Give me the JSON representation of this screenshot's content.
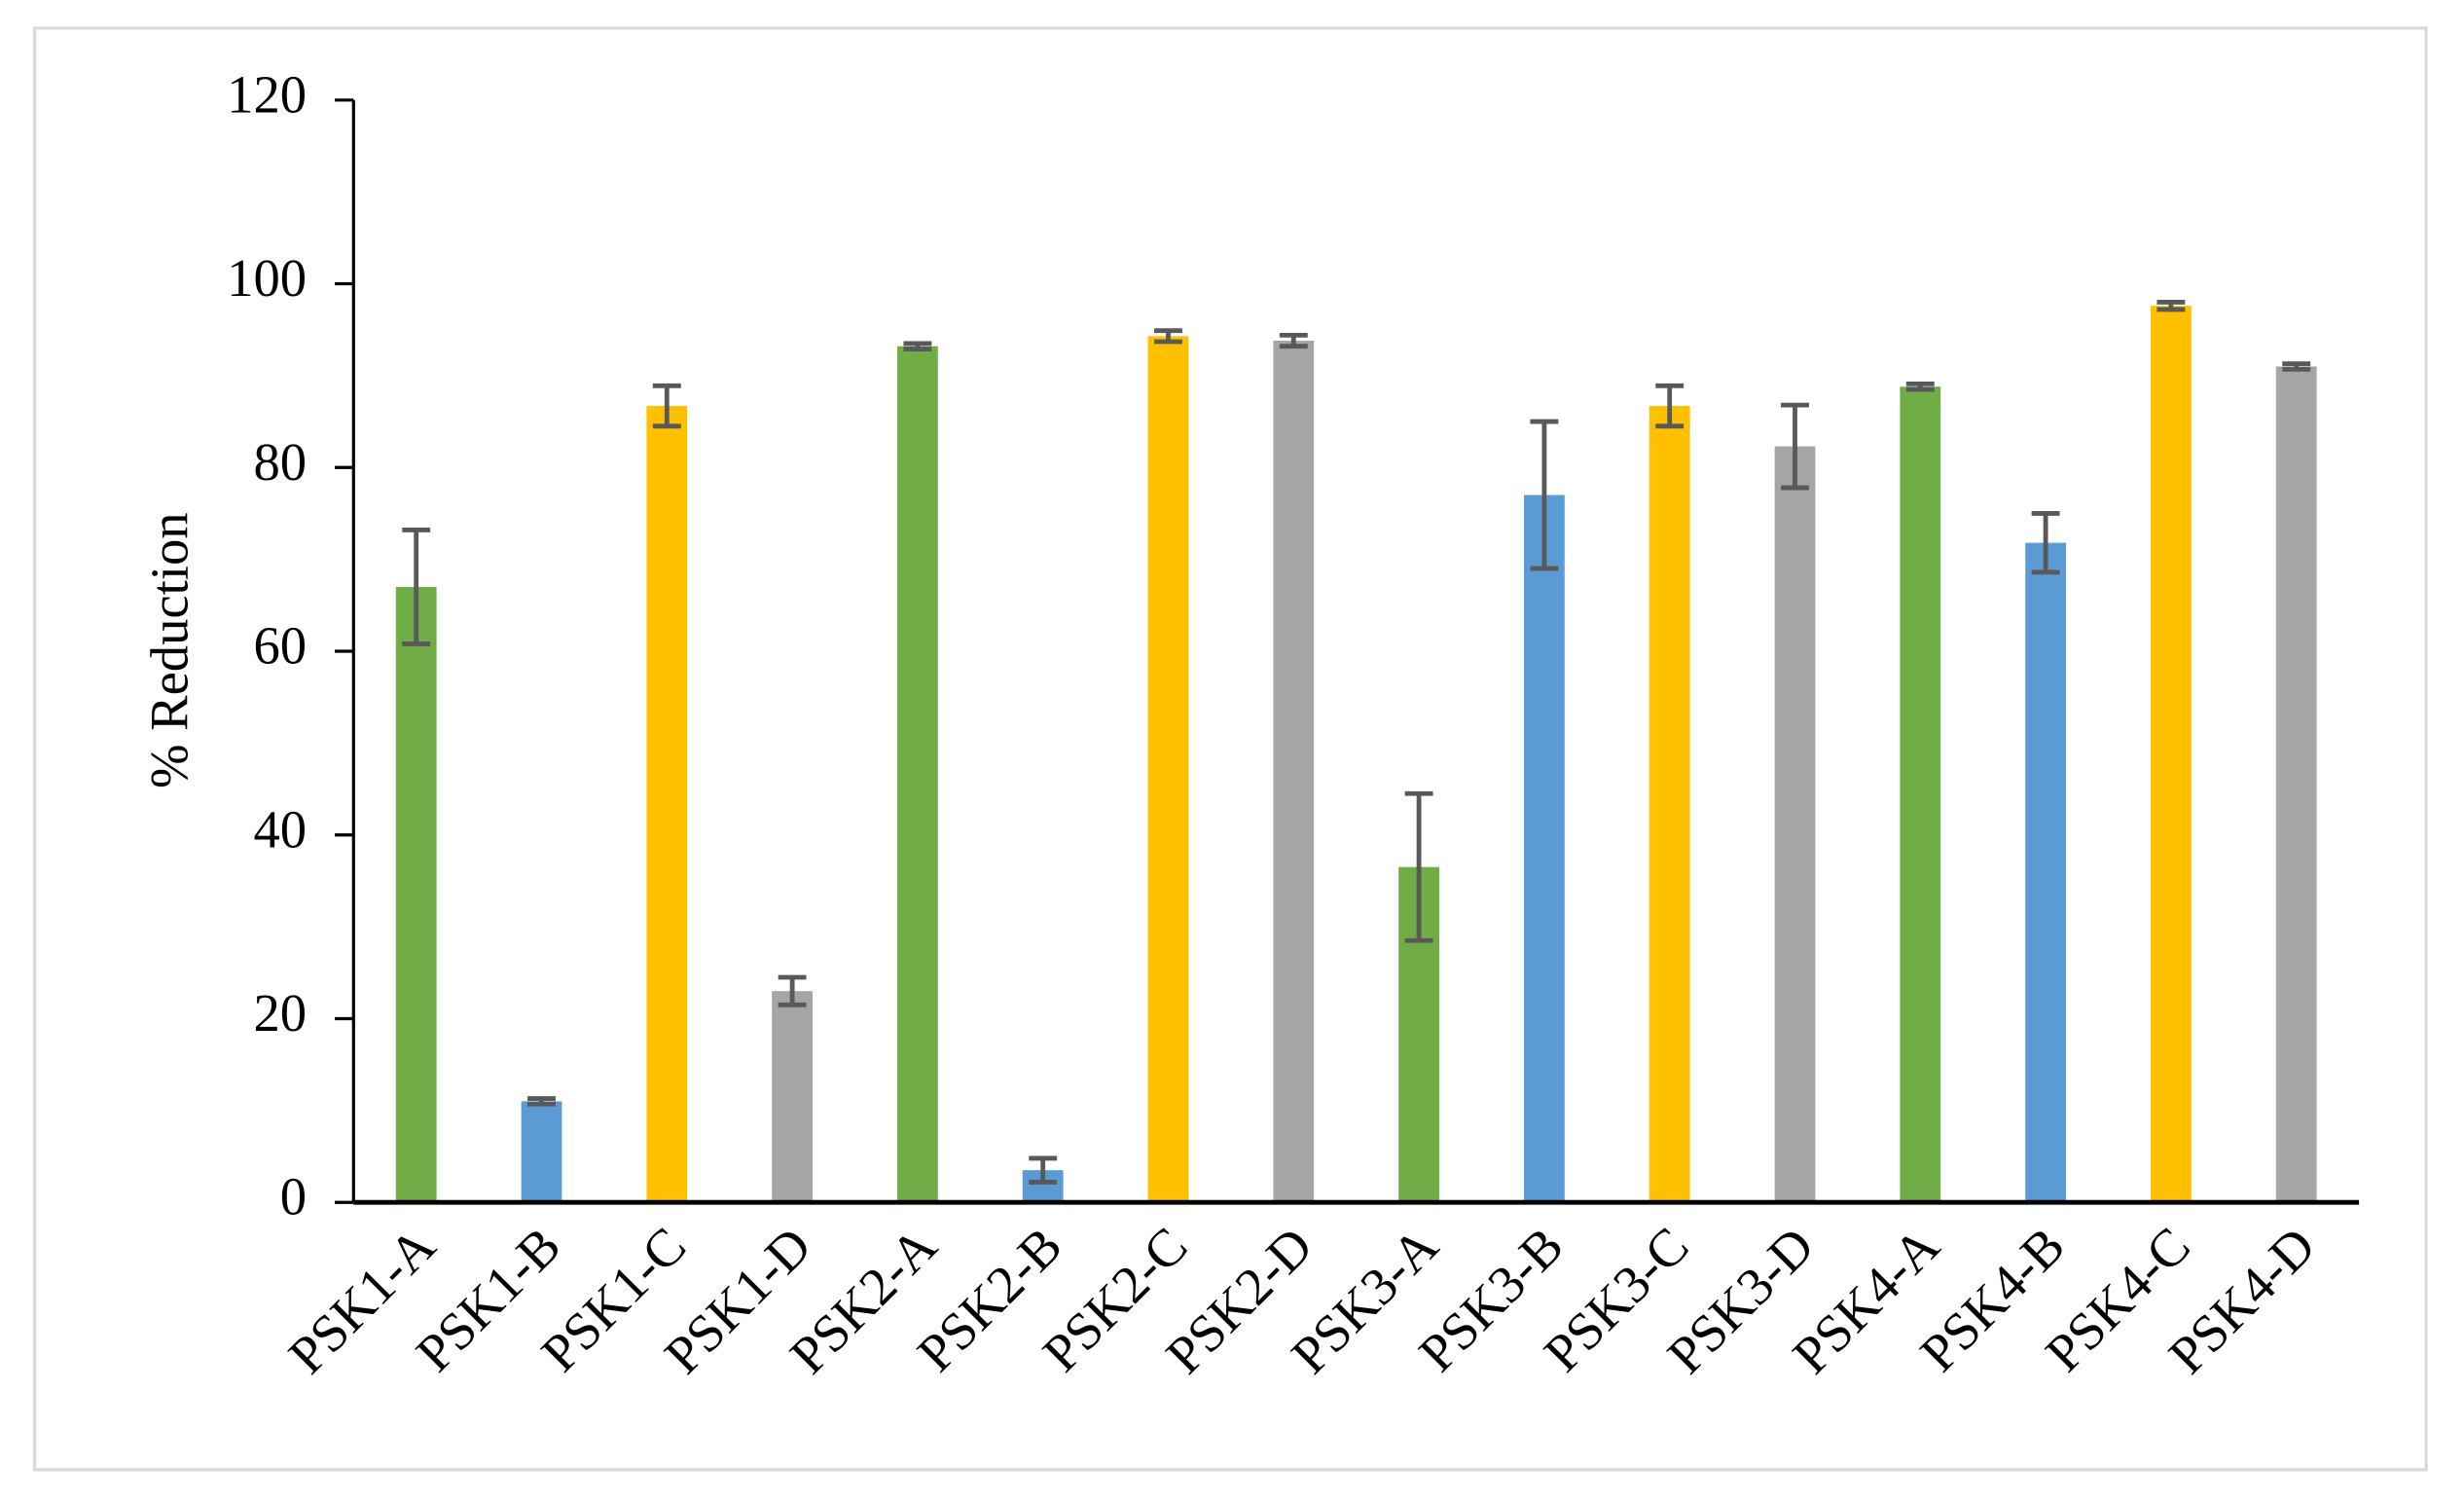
{
  "chart_data": {
    "type": "bar",
    "y_label": "% Reduction",
    "categories": [
      "PSK1-A",
      "PSK1-B",
      "PSK1-C",
      "PSK1-D",
      "PSK2-A",
      "PSK2-B",
      "PSK2-C",
      "PSK2-D",
      "PSK3-A",
      "PSK3-B",
      "PSK3-C",
      "PSK3-D",
      "PSK4-A",
      "PSK4-B",
      "PSK4-C",
      "PSK4-D"
    ],
    "values": [
      67,
      11,
      86.7,
      23,
      93.2,
      3.5,
      94.3,
      93.8,
      36.5,
      77,
      86.7,
      82.3,
      88.8,
      71.8,
      97.6,
      91
    ],
    "errors": [
      6.2,
      0.3,
      2.2,
      1.5,
      0.3,
      1.3,
      0.6,
      0.6,
      8,
      8,
      2.2,
      4.5,
      0.3,
      3.2,
      0.4,
      0.3
    ],
    "colors": [
      "#70ad47",
      "#5b9bd5",
      "#ffc000",
      "#a5a5a5",
      "#70ad47",
      "#5b9bd5",
      "#ffc000",
      "#a5a5a5",
      "#70ad47",
      "#5b9bd5",
      "#ffc000",
      "#a5a5a5",
      "#70ad47",
      "#5b9bd5",
      "#ffc000",
      "#a5a5a5"
    ],
    "error_color": "#595959",
    "ylim": [
      0,
      120
    ],
    "yticks": [
      0,
      20,
      40,
      60,
      80,
      100,
      120
    ],
    "grid": false
  }
}
